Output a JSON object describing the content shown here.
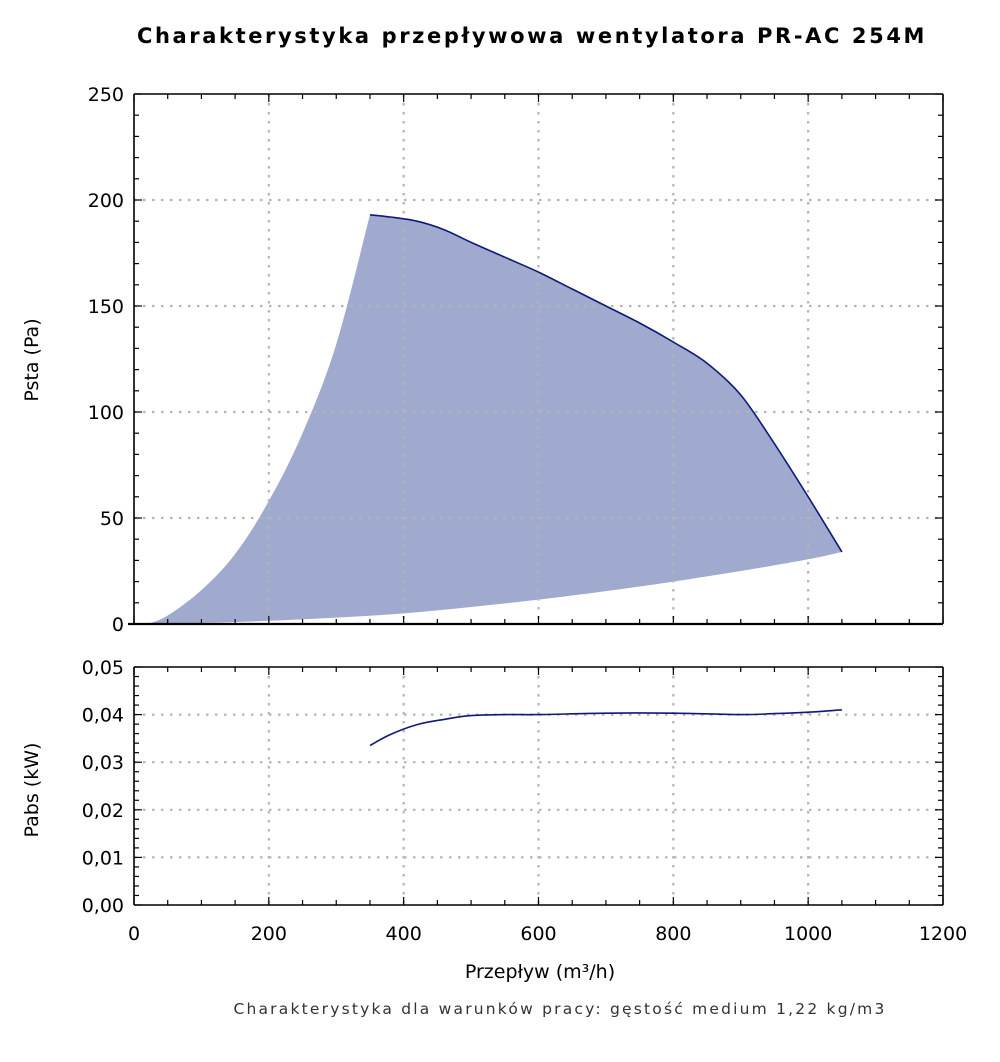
{
  "chart_data": [
    {
      "type": "area",
      "title": "Charakterystyka przepływowa wentylatora PR-AC 254M",
      "ylabel": "Psta (Pa)",
      "xlim": [
        0,
        1200
      ],
      "ylim": [
        0,
        250
      ],
      "x_ticks": [
        "0",
        "200",
        "400",
        "600",
        "800",
        "1000",
        "1200"
      ],
      "y_ticks": [
        "0",
        "50",
        "100",
        "150",
        "200",
        "250"
      ],
      "grid": true,
      "fill_color": "#a0aacf",
      "line_color": "#0d1a7a",
      "upper_curve": {
        "x": [
          350,
          380,
          420,
          460,
          500,
          550,
          600,
          650,
          700,
          750,
          800,
          850,
          900,
          950,
          1000,
          1050
        ],
        "y": [
          193,
          192,
          190,
          186,
          180,
          173,
          166,
          158,
          150,
          142,
          133,
          123,
          108,
          85,
          60,
          34
        ]
      },
      "left_curve": {
        "x": [
          20,
          50,
          100,
          150,
          200,
          250,
          300,
          350
        ],
        "y": [
          0,
          4,
          16,
          33,
          58,
          90,
          132,
          193
        ]
      },
      "lower_curve": {
        "x": [
          20,
          100,
          200,
          300,
          400,
          500,
          600,
          700,
          800,
          900,
          1000,
          1050
        ],
        "y": [
          0,
          0.5,
          1.5,
          3,
          5,
          8,
          11.5,
          15.5,
          20,
          25,
          30.5,
          34
        ]
      }
    },
    {
      "type": "line",
      "ylabel": "Pabs (kW)",
      "xlabel": "Przepływ (m³/h)",
      "xlim": [
        0,
        1200
      ],
      "ylim": [
        0,
        0.05
      ],
      "x_ticks": [
        "0",
        "200",
        "400",
        "600",
        "800",
        "1000",
        "1200"
      ],
      "y_ticks": [
        "0,00",
        "0,01",
        "0,02",
        "0,03",
        "0,04",
        "0,05"
      ],
      "grid": true,
      "line_color": "#0d1a7a",
      "series": [
        {
          "x": [
            350,
            380,
            420,
            460,
            500,
            550,
            600,
            700,
            800,
            900,
            950,
            1000,
            1050
          ],
          "values": [
            0.0335,
            0.0358,
            0.0379,
            0.039,
            0.0398,
            0.04,
            0.04,
            0.0403,
            0.0403,
            0.04,
            0.0402,
            0.0405,
            0.041
          ]
        }
      ]
    }
  ],
  "footer": "Charakterystyka dla warunków pracy: gęstość medium 1,22 kg/m3"
}
